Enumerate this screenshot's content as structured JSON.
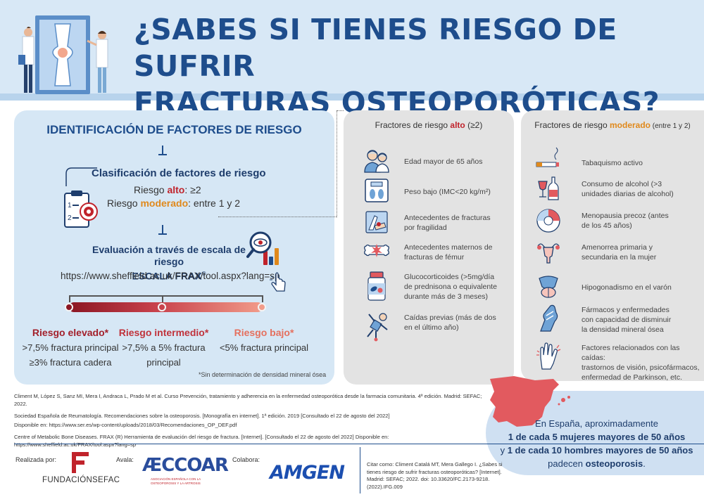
{
  "header": {
    "title_line1": "¿SABES SI TIENES RIESGO DE SUFRIR",
    "title_line2": "FRACTURAS OSTEOPORÓTICAS?"
  },
  "identificacion": {
    "title": "IDENTIFICACIÓN DE FACTORES DE RIESGO",
    "clasificacion_title": "Clasificación de factores de riesgo",
    "riesgo_alto_prefix": "Riesgo ",
    "riesgo_alto_word": "alto",
    "riesgo_alto_value": ": ≥2",
    "riesgo_moderado_prefix": "Riesgo ",
    "riesgo_moderado_word": "moderado",
    "riesgo_moderado_value": ": entre 1 y 2",
    "evaluacion_title": "Evaluación a través de escala de riesgo",
    "escala": "ESCALA FRAX",
    "escala_reg": "®",
    "url": "https://www.sheffield.ac.uk/FRAX/tool.aspx?lang=sp",
    "riesgos": [
      {
        "title": "Riesgo elevado*",
        "line1": ">7,5% fractura principal",
        "line2": "≥3% fractura cadera",
        "color": "#a3202b"
      },
      {
        "title": "Riesgo intermedio*",
        "line1": ">7,5% a 5% fractura",
        "line2": "principal",
        "color": "#c0323b"
      },
      {
        "title": "Riesgo bajo*",
        "line1": "<5% fractura principal",
        "line2": "",
        "color": "#e5705e"
      }
    ],
    "nota": "*Sin determinación de densidad mineral ósea"
  },
  "alto": {
    "header_prefix": "Fractores de riesgo ",
    "header_word": "alto",
    "header_suffix": " (≥2)",
    "items": [
      {
        "icon": "elderly-couple-icon",
        "text": "Edad mayor de 65 años"
      },
      {
        "icon": "scale-icon",
        "text": "Peso bajo (IMC<20 kg/m²)"
      },
      {
        "icon": "arm-fracture-icon",
        "text": "Antecedentes de fracturas\npor fragilidad"
      },
      {
        "icon": "femur-icon",
        "text": "Antecedentes maternos de\nfracturas de fémur"
      },
      {
        "icon": "pill-bottle-icon",
        "text": "Glucocorticoides (>5mg/día\nde prednisona o equivalente\ndurante más de 3 meses)"
      },
      {
        "icon": "falling-person-icon",
        "text": "Caídas previas (más de dos\nen el último año)"
      }
    ]
  },
  "moderado": {
    "header_prefix": "Fractores de riesgo ",
    "header_word": "moderado",
    "header_suffix": " (entre 1 y 2)",
    "items": [
      {
        "icon": "cigarette-icon",
        "text": "Tabaquismo activo"
      },
      {
        "icon": "alcohol-icon",
        "text": "Consumo de alcohol (>3\nunidades diarias de alcohol)"
      },
      {
        "icon": "menstrual-cycle-icon",
        "text": "Menopausia precoz (antes\nde los 45 años)"
      },
      {
        "icon": "uterus-icon",
        "text": "Amenorrea primaria y\nsecundaria en la mujer"
      },
      {
        "icon": "hypogonadism-icon",
        "text": "Hipogonadismo en el varón"
      },
      {
        "icon": "bone-hand-icon",
        "text": "Fármacos y enfermedades\ncon capacidad de disminuir\nla densidad mineral ósea"
      },
      {
        "icon": "trembling-hand-icon",
        "text": "Factores relacionados con las caídas:\ntrastornos de visión, psicofármacos,\nenfermedad de Parkinson, etc."
      }
    ]
  },
  "referencias": [
    "Climent M, López S, Sanz MI, Mera I, Andraca L, Prado M et al. Curso Prevención, tratamiento y adherencia en la enfermedad osteoporótica desde la farmacia comunitaria. 4ª edición. Madrid: SEFAC; 2022.",
    "Sociedad Española de Reumatología. Recomendaciones sobre la osteoporosis. [Monografía en internet]. 1ª edición. 2019 [Consultado el 22 de agosto del 2022]",
    "Disponible en: https://www.ser.es/wp-content/uploads/2018/03/Recomendaciones_OP_DEF.pdf",
    "Centre of Metabolic Bone Diseases. FRAX (R) Herramienta de evaluación del riesgo de fractura. [Internet]. [Consultado el 22 de agosto del 2022] Disponible en: https://www.sheffield.ac.uk/FRAX/tool.aspx?lang=sp"
  ],
  "estadistica": {
    "line1": "En España, aproximadamente",
    "line2": "1 de cada 5 mujeres mayores de 50 años",
    "line3_prefix": "y ",
    "line3": "1 de cada 10 hombres mayores de 50 años",
    "line4_prefix": "padecen ",
    "line4_word": "osteoporosis",
    "line4_suffix": "."
  },
  "footer": {
    "realizada_label": "Realizada por:",
    "avala_label": "Avala:",
    "colabora_label": "Colabora:",
    "sefac_logo": "FUNDACIÓNSEFAC",
    "aeccoar_logo": "ÆCCOAR",
    "aeccoar_sub": "ASOCIACIÓN ESPAÑOLA CON LA OSTEOPOROSIS Y LA ARTROSIS",
    "amgen_logo": "AMGEN",
    "citar": "Citar como: Climent Catalá MT, Mera Gallego I. ¿Sabes si tienes riesgo de sufrir fracturas osteoporóticas? [Internet]. Madrid: SEFAC; 2022. doi: 10.33620/FC.2173-9218.(2022).IFG.009"
  },
  "colors": {
    "title_blue": "#1e4d8c",
    "light_blue": "#d6e7f5",
    "grey_panel": "#e3e3e3",
    "alto_red": "#c0232b",
    "moderado_orange": "#e0891c",
    "spain_red": "#e25a5f"
  }
}
